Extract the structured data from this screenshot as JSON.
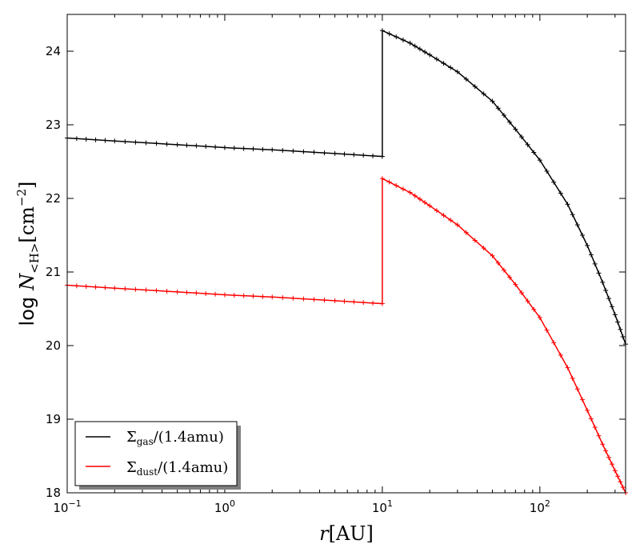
{
  "chart_data": {
    "type": "line",
    "title": "",
    "xlabel": {
      "prefix": "r",
      "unit": "[AU]"
    },
    "ylabel": {
      "prefix": "log",
      "symbol": "N",
      "subscript": "<H>",
      "unit": "[cm",
      "unit_exp": "−2",
      "unit_close": "]"
    },
    "xscale": "log",
    "xlim": [
      0.1,
      350
    ],
    "ylim": [
      18,
      24.5
    ],
    "x_ticks": [
      {
        "value": 0.1,
        "base": "10",
        "exp": "−1"
      },
      {
        "value": 1,
        "base": "10",
        "exp": "0"
      },
      {
        "value": 10,
        "base": "10",
        "exp": "1"
      },
      {
        "value": 100,
        "base": "10",
        "exp": "2"
      }
    ],
    "y_ticks": [
      {
        "value": 18,
        "label": "18"
      },
      {
        "value": 19,
        "label": "19"
      },
      {
        "value": 20,
        "label": "20"
      },
      {
        "value": 21,
        "label": "21"
      },
      {
        "value": 22,
        "label": "22"
      },
      {
        "value": 23,
        "label": "23"
      },
      {
        "value": 24,
        "label": "24"
      }
    ],
    "grid": false,
    "legend_position": "lower-left",
    "series": [
      {
        "name": "Σgas/(1.4amu)",
        "legend": {
          "main": "Σ",
          "sub": "gas",
          "rest": "/(1.4amu)"
        },
        "color": "#000000",
        "marker": "+",
        "x": [
          0.1,
          0.2,
          0.5,
          1,
          2,
          5,
          10,
          10,
          15,
          20,
          30,
          50,
          70,
          100,
          150,
          200,
          250,
          300,
          350
        ],
        "y": [
          22.82,
          22.78,
          22.73,
          22.69,
          22.66,
          22.61,
          22.57,
          24.28,
          24.11,
          23.95,
          23.72,
          23.32,
          22.94,
          22.52,
          21.92,
          21.36,
          20.86,
          20.42,
          20.02
        ]
      },
      {
        "name": "Σdust/(1.4amu)",
        "legend": {
          "main": "Σ",
          "sub": "dust",
          "rest": "/(1.4amu)"
        },
        "color": "#ff0000",
        "marker": "+",
        "x": [
          0.1,
          0.2,
          0.5,
          1,
          2,
          5,
          10,
          10,
          15,
          20,
          30,
          50,
          70,
          100,
          150,
          200,
          250,
          300,
          350
        ],
        "y": [
          20.82,
          20.78,
          20.73,
          20.69,
          20.66,
          20.61,
          20.57,
          22.27,
          22.08,
          21.9,
          21.64,
          21.22,
          20.83,
          20.38,
          19.7,
          19.12,
          18.66,
          18.3,
          18.0
        ]
      }
    ]
  }
}
